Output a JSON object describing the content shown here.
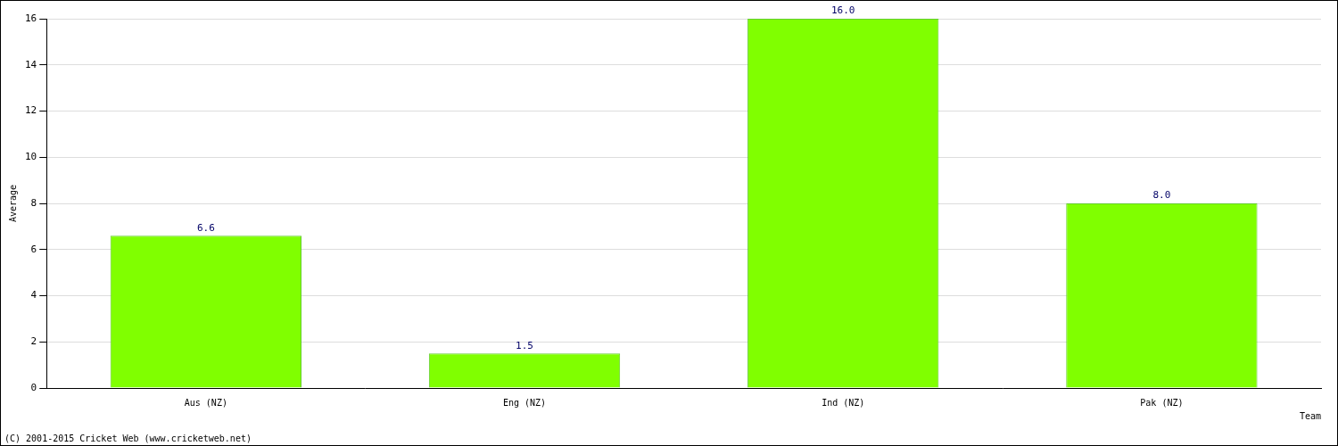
{
  "chart_data": {
    "type": "bar",
    "categories": [
      "Aus (NZ)",
      "Eng (NZ)",
      "Ind (NZ)",
      "Pak (NZ)"
    ],
    "values": [
      6.6,
      1.5,
      16.0,
      8.0
    ],
    "value_labels": [
      "6.6",
      "1.5",
      "16.0",
      "8.0"
    ],
    "data_labels": true,
    "color": "#80ff00",
    "x_label": "Team",
    "y_label": "Average",
    "ylim": [
      0,
      16
    ],
    "yticks": [
      0,
      2,
      4,
      6,
      8,
      10,
      12,
      14,
      16
    ],
    "grid": true,
    "annotations": [
      "(C) 2001-2015 Cricket Web (www.cricketweb.net)"
    ]
  }
}
